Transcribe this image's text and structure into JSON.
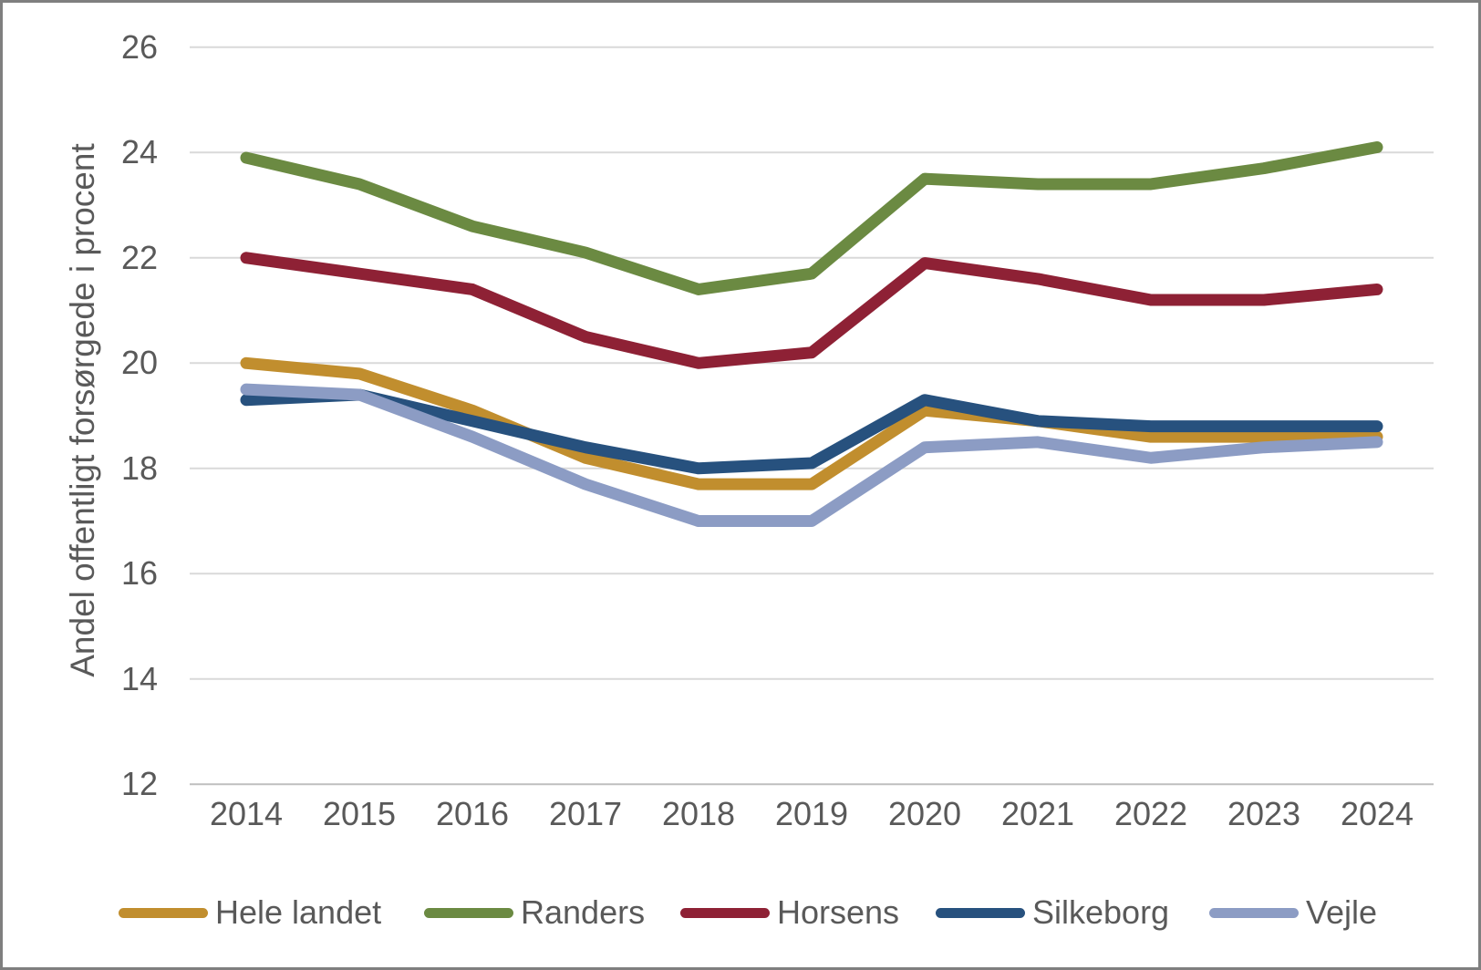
{
  "chart_data": {
    "type": "line",
    "title": "",
    "ylabel": "Andel offentligt forsørgede i procent",
    "xlabel": "",
    "ylim": [
      12,
      26
    ],
    "yticks": [
      26,
      24,
      22,
      20,
      18,
      16,
      14,
      12
    ],
    "grid": "horizontal",
    "legend_position": "bottom",
    "categories": [
      "2014",
      "2015",
      "2016",
      "2017",
      "2018",
      "2019",
      "2020",
      "2021",
      "2022",
      "2023",
      "2024"
    ],
    "series": [
      {
        "name": "Hele landet",
        "color": "#C18E2E",
        "values": [
          20.0,
          19.8,
          19.1,
          18.2,
          17.7,
          17.7,
          19.1,
          18.9,
          18.6,
          18.6,
          18.6
        ]
      },
      {
        "name": "Randers",
        "color": "#6B8A42",
        "values": [
          23.9,
          23.4,
          22.6,
          22.1,
          21.4,
          21.7,
          23.5,
          23.4,
          23.4,
          23.7,
          24.1
        ]
      },
      {
        "name": "Horsens",
        "color": "#8E2135",
        "values": [
          22.0,
          21.7,
          21.4,
          20.5,
          20.0,
          20.2,
          21.9,
          21.6,
          21.2,
          21.2,
          21.4
        ]
      },
      {
        "name": "Silkeborg",
        "color": "#27517E",
        "values": [
          19.3,
          19.4,
          18.9,
          18.4,
          18.0,
          18.1,
          19.3,
          18.9,
          18.8,
          18.8,
          18.8
        ]
      },
      {
        "name": "Vejle",
        "color": "#8C9CC4",
        "values": [
          19.5,
          19.4,
          18.6,
          17.7,
          17.0,
          17.0,
          18.4,
          18.5,
          18.2,
          18.4,
          18.5
        ]
      }
    ]
  },
  "colors": {
    "text": "#595959",
    "gridline": "#D9D9D9",
    "axis_line": "#BFBFBF",
    "background": "#FFFFFF",
    "border": "#7F7F7F"
  }
}
